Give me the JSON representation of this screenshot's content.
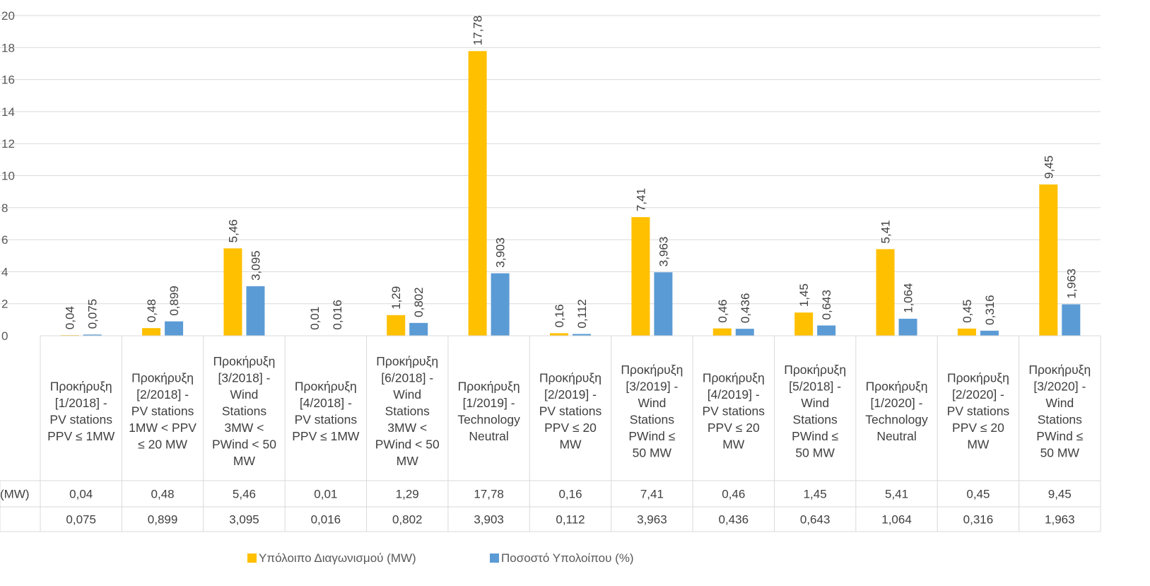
{
  "chart_data": {
    "type": "bar",
    "title": "",
    "xlabel": "",
    "ylabel": "",
    "ylim": [
      0,
      20
    ],
    "yticks": [
      0,
      2,
      4,
      6,
      8,
      10,
      12,
      14,
      16,
      18,
      20
    ],
    "grid": true,
    "legend_position": "bottom",
    "categories": [
      "Προκήρυξη [1/2018] - PV stations PPV ≤ 1MW",
      "Προκήρυξη [2/2018] - PV stations 1MW < PPV ≤ 20 MW",
      "Προκήρυξη [3/2018] - Wind Stations 3MW < PWind < 50 MW",
      "Προκήρυξη [4/2018] - PV stations PPV ≤ 1MW",
      "Προκήρυξη [6/2018] - Wind Stations 3MW < PWind < 50 MW",
      "Προκήρυξη [1/2019] - Technology Neutral",
      "Προκήρυξη [2/2019] - PV stations PPV ≤ 20 MW",
      "Προκήρυξη [3/2019] - Wind Stations PWind ≤ 50 MW",
      "Προκήρυξη [4/2019] - PV stations PPV ≤ 20 MW",
      "Προκήρυξη [5/2018] - Wind Stations PWind ≤ 50 MW",
      "Προκήρυξη [1/2020] - Technology Neutral",
      "Προκήρυξη [2/2020] - PV stations PPV ≤ 20 MW",
      "Προκήρυξη [3/2020] - Wind Stations PWind ≤ 50 MW"
    ],
    "category_lines": [
      [
        "Προκήρυξη",
        "[1/2018] -",
        "PV stations",
        "PPV ≤ 1MW"
      ],
      [
        "Προκήρυξη",
        "[2/2018] -",
        "PV stations",
        "1MW < PPV",
        "≤ 20 MW"
      ],
      [
        "Προκήρυξη",
        "[3/2018] -",
        "Wind",
        "Stations",
        "3MW <",
        "PWind < 50",
        "MW"
      ],
      [
        "Προκήρυξη",
        "[4/2018] -",
        "PV stations",
        "PPV ≤ 1MW"
      ],
      [
        "Προκήρυξη",
        "[6/2018] -",
        "Wind",
        "Stations",
        "3MW <",
        "PWind < 50",
        "MW"
      ],
      [
        "Προκήρυξη",
        "[1/2019] -",
        "Technology",
        "Neutral"
      ],
      [
        "Προκήρυξη",
        "[2/2019] -",
        "PV stations",
        "PPV ≤ 20",
        "MW"
      ],
      [
        "Προκήρυξη",
        "[3/2019] -",
        "Wind",
        "Stations",
        "PWind  ≤",
        "50 MW"
      ],
      [
        "Προκήρυξη",
        "[4/2019] -",
        "PV stations",
        "PPV ≤ 20",
        "MW"
      ],
      [
        "Προκήρυξη",
        "[5/2018] -",
        "Wind",
        "Stations",
        "PWind  ≤",
        "50 MW"
      ],
      [
        "Προκήρυξη",
        "[1/2020] -",
        "Technology",
        "Neutral"
      ],
      [
        "Προκήρυξη",
        "[2/2020] -",
        "PV stations",
        "PPV ≤ 20",
        "MW"
      ],
      [
        "Προκήρυξη",
        "[3/2020] -",
        "Wind",
        "Stations",
        "PWind  ≤",
        "50 MW"
      ]
    ],
    "series": [
      {
        "name": "Υπόλοιπο Διαγωνισμού (MW)",
        "table_label": "(MW)",
        "color": "#FFC000",
        "values": [
          0.04,
          0.48,
          5.46,
          0.01,
          1.29,
          17.78,
          0.16,
          7.41,
          0.46,
          1.45,
          5.41,
          0.45,
          9.45
        ],
        "labels": [
          "0,04",
          "0,48",
          "5,46",
          "0,01",
          "1,29",
          "17,78",
          "0,16",
          "7,41",
          "0,46",
          "1,45",
          "5,41",
          "0,45",
          "9,45"
        ]
      },
      {
        "name": "Ποσοστό Υπολοίπου (%)",
        "table_label": "",
        "color": "#5B9BD5",
        "values": [
          0.075,
          0.899,
          3.095,
          0.016,
          0.802,
          3.903,
          0.112,
          3.963,
          0.436,
          0.643,
          1.064,
          0.316,
          1.963
        ],
        "labels": [
          "0,075",
          "0,899",
          "3,095",
          "0,016",
          "0,802",
          "3,903",
          "0,112",
          "3,963",
          "0,436",
          "0,643",
          "1,064",
          "0,316",
          "1,963"
        ]
      }
    ]
  }
}
